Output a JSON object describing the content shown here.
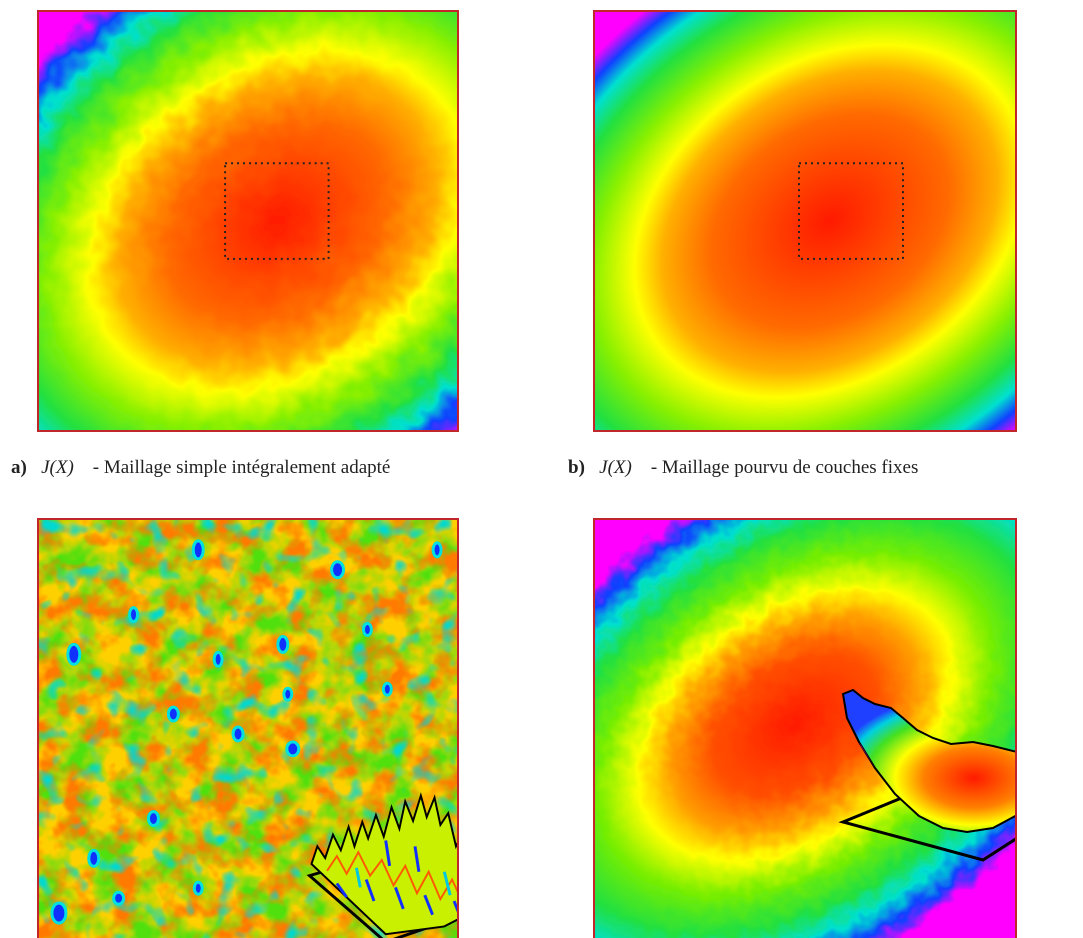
{
  "figure": {
    "panels": [
      {
        "id": "a",
        "label": "a)",
        "quantity": "J(X)",
        "caption": "- Maillage simple intégralement adapté"
      },
      {
        "id": "b",
        "label": "b)",
        "quantity": "J(X)",
        "caption": "- Maillage pourvu de couches fixes"
      },
      {
        "id": "c"
      },
      {
        "id": "d"
      }
    ],
    "colors": {
      "frame": "#c0262a",
      "scale_high": "#ff1a00",
      "scale_mid_high": "#ffa500",
      "scale_mid": "#ffff00",
      "scale_mid_low": "#55ee00",
      "scale_low": "#00e5e5",
      "scale_lower": "#1040ff",
      "scale_lowest": "#ff00ff"
    },
    "colormap": "rainbow (red = high, blue/magenta = low)"
  }
}
